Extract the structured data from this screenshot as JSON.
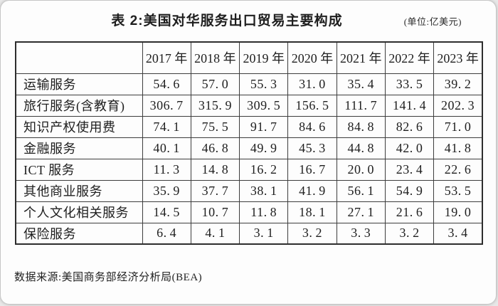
{
  "header": {
    "title": "表 2:美国对华服务出口贸易主要构成",
    "unit_note": "(单位:亿美元)"
  },
  "chart_data": {
    "type": "table",
    "title": "表 2:美国对华服务出口贸易主要构成",
    "unit": "亿美元",
    "columns": [
      "",
      "2017 年",
      "2018 年",
      "2019 年",
      "2020 年",
      "2021 年",
      "2022 年",
      "2023 年"
    ],
    "rows": [
      {
        "label": "运输服务",
        "values": [
          "54.6",
          "57.0",
          "55.3",
          "31.0",
          "35.4",
          "33.5",
          "39.2"
        ]
      },
      {
        "label": "旅行服务(含教育)",
        "values": [
          "306.7",
          "315.9",
          "309.5",
          "156.5",
          "111.7",
          "141.4",
          "202.3"
        ]
      },
      {
        "label": "知识产权使用费",
        "values": [
          "74.1",
          "75.5",
          "91.7",
          "84.6",
          "84.8",
          "82.6",
          "71.0"
        ]
      },
      {
        "label": "金融服务",
        "values": [
          "40.1",
          "46.8",
          "49.9",
          "45.3",
          "44.8",
          "42.0",
          "41.8"
        ]
      },
      {
        "label": "ICT 服务",
        "values": [
          "11.3",
          "14.8",
          "16.2",
          "16.7",
          "20.0",
          "23.4",
          "22.6"
        ]
      },
      {
        "label": "其他商业服务",
        "values": [
          "35.9",
          "37.7",
          "38.1",
          "41.9",
          "56.1",
          "54.9",
          "53.5"
        ]
      },
      {
        "label": "个人文化相关服务",
        "values": [
          "14.5",
          "10.7",
          "11.8",
          "18.1",
          "27.1",
          "21.6",
          "19.0"
        ]
      },
      {
        "label": "保险服务",
        "values": [
          "6.4",
          "4.1",
          "3.1",
          "3.2",
          "3.3",
          "3.2",
          "3.4"
        ]
      }
    ]
  },
  "footer": {
    "source": "数据来源:美国商务部经济分析局(BEA)"
  }
}
